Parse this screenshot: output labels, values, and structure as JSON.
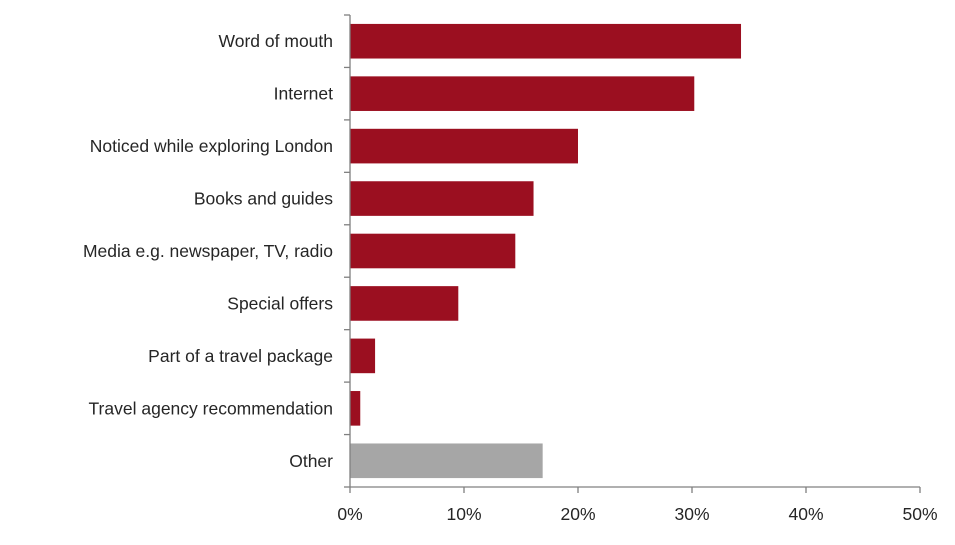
{
  "chart_data": {
    "type": "bar",
    "orientation": "horizontal",
    "categories": [
      "Word of mouth",
      "Internet",
      "Noticed while exploring London",
      "Books and guides",
      "Media e.g. newspaper, TV, radio",
      "Special offers",
      "Part of a travel package",
      "Travel agency recommendation",
      "Other"
    ],
    "values": [
      34.3,
      30.2,
      20.0,
      16.1,
      14.5,
      9.5,
      2.2,
      0.9,
      16.9
    ],
    "colors": [
      "#9b0f20",
      "#9b0f20",
      "#9b0f20",
      "#9b0f20",
      "#9b0f20",
      "#9b0f20",
      "#9b0f20",
      "#9b0f20",
      "#a6a6a6"
    ],
    "xlim": [
      0,
      50
    ],
    "xticks": [
      0,
      10,
      20,
      30,
      40,
      50
    ],
    "xtick_labels": [
      "0%",
      "10%",
      "20%",
      "30%",
      "40%",
      "50%"
    ],
    "grid": false,
    "axis_color": "#808080"
  }
}
